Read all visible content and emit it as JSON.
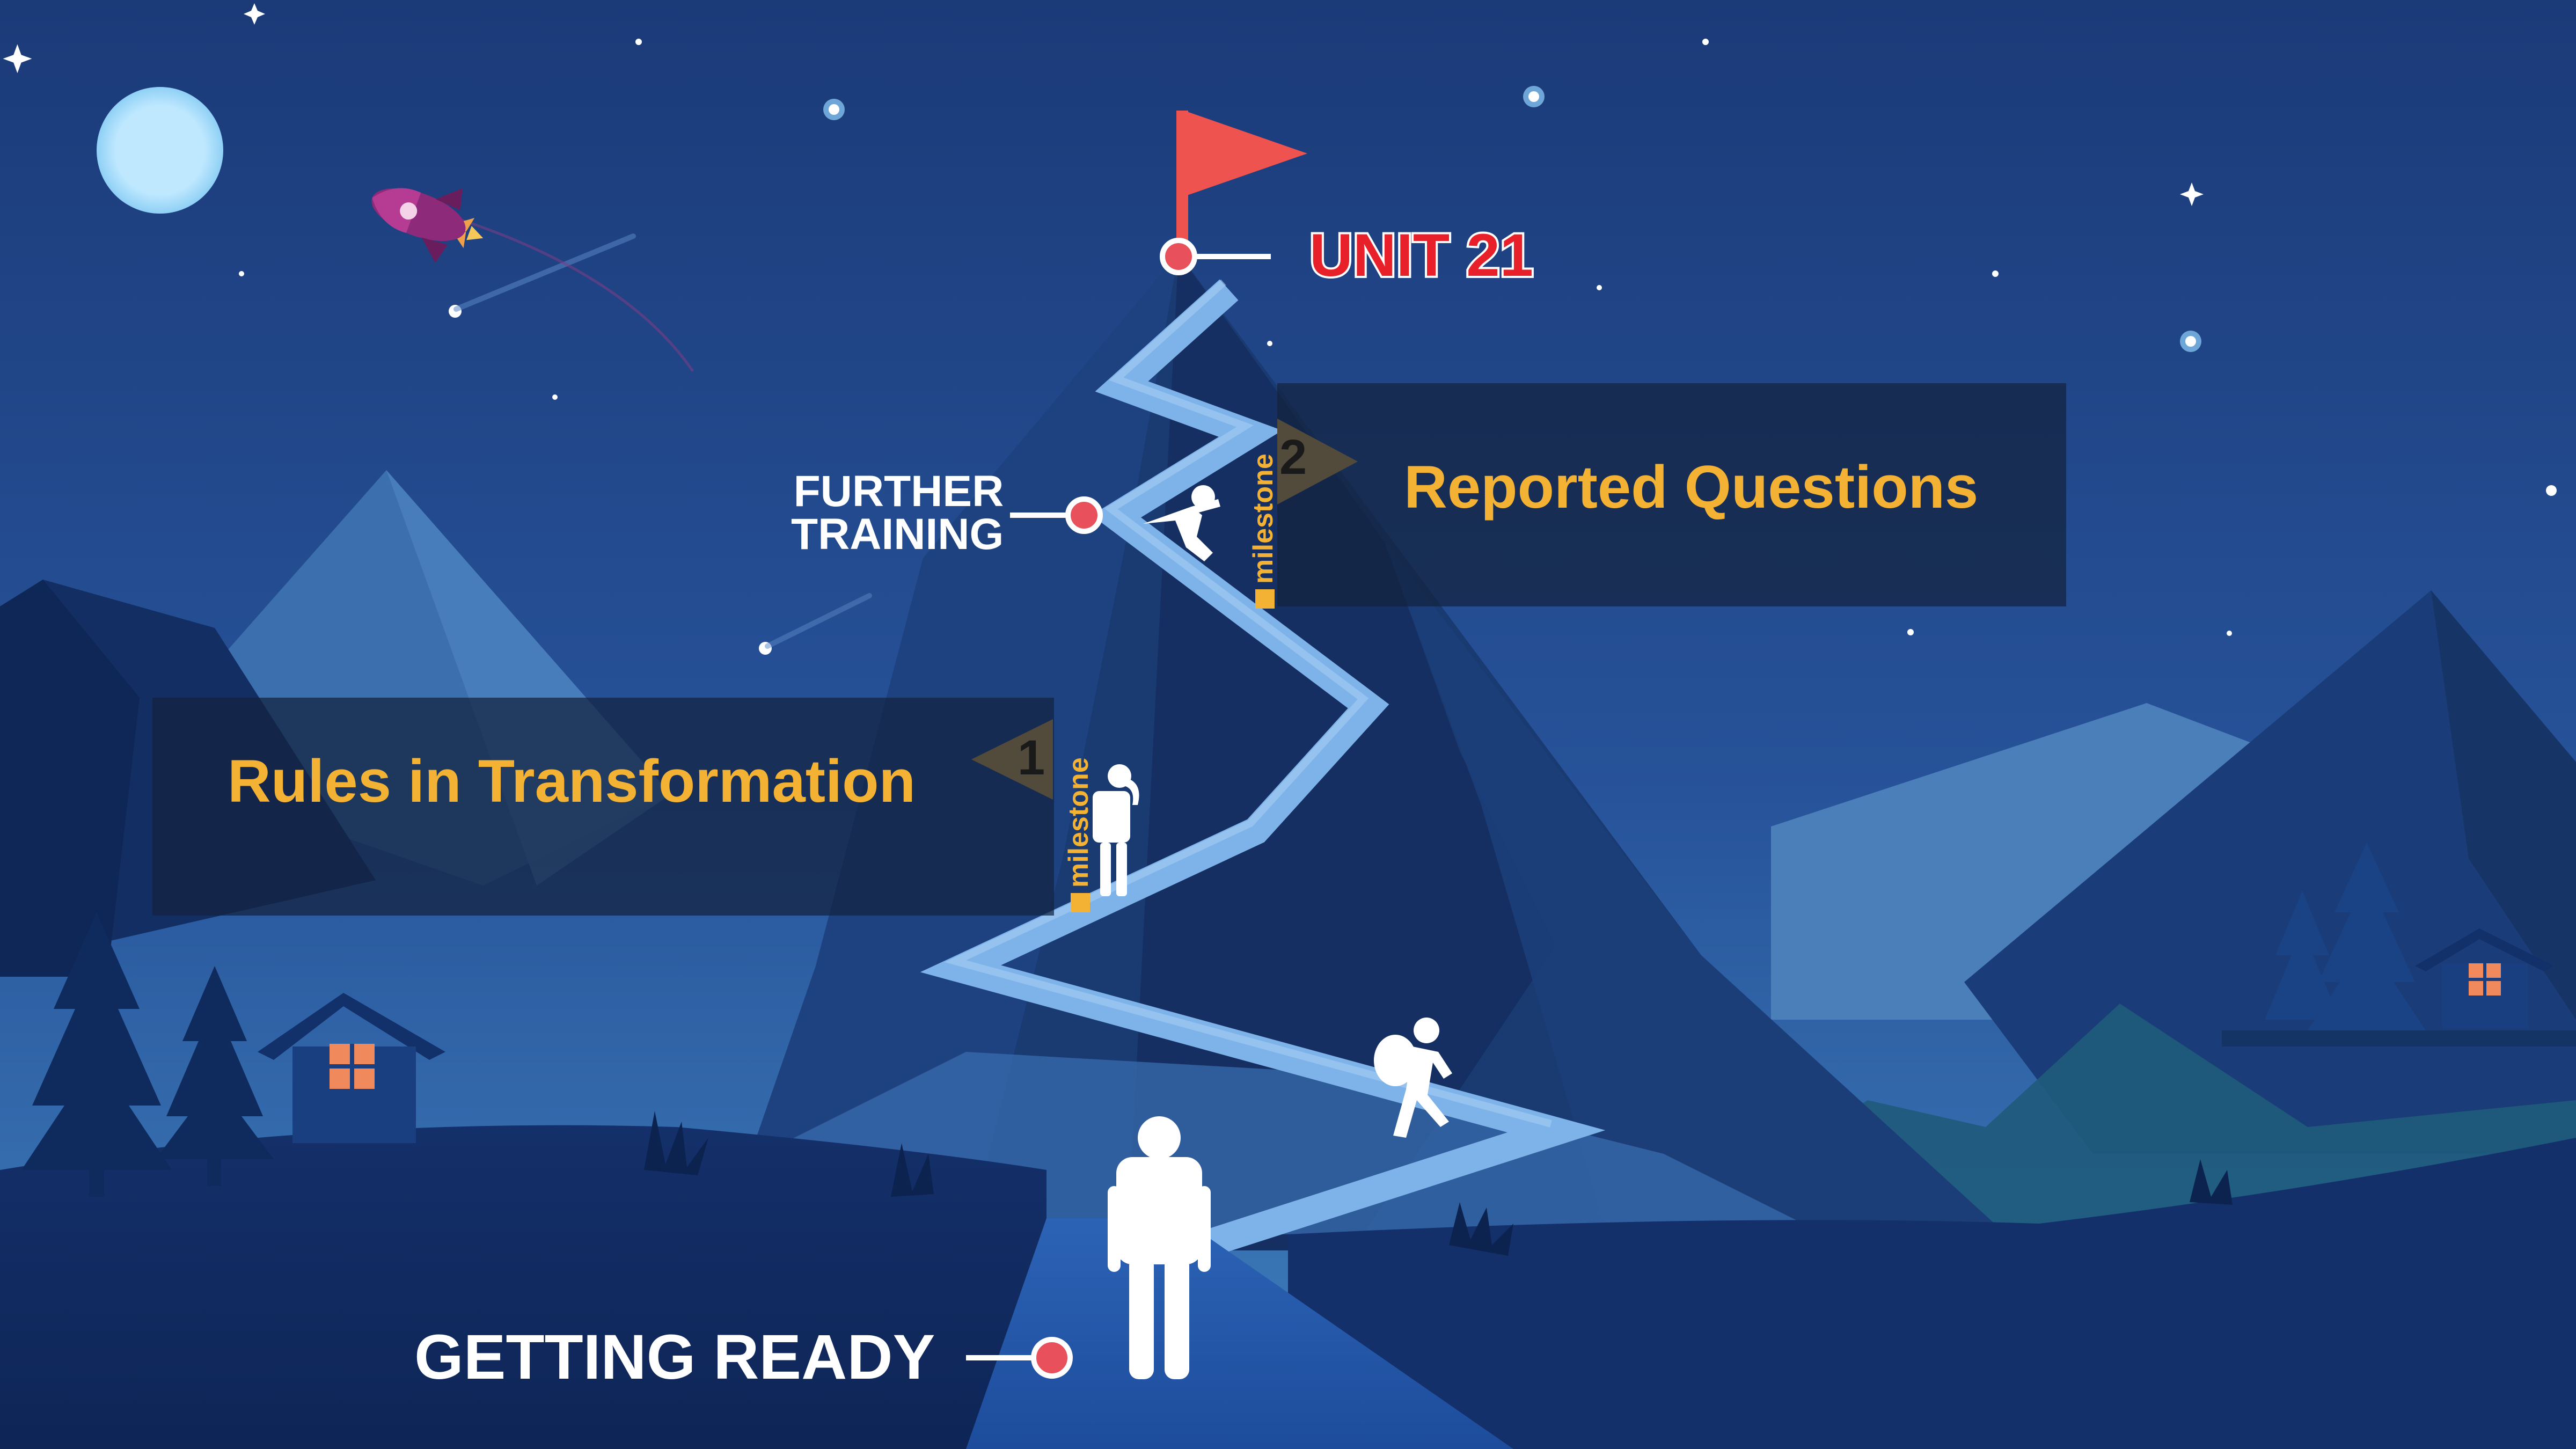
{
  "summit": {
    "label": "UNIT 21"
  },
  "stages": {
    "start": {
      "label": "GETTING READY"
    },
    "middle": {
      "line1": "FURTHER",
      "line2": "TRAINING"
    }
  },
  "milestones": [
    {
      "number": "1",
      "tag": "milestone",
      "title": "Rules in Transformation"
    },
    {
      "number": "2",
      "tag": "milestone",
      "title": "Reported Questions"
    }
  ],
  "colors": {
    "sky_top": "#1d3d7a",
    "sky_bottom": "#3a78b6",
    "accent_yellow": "#f3b233",
    "marker_red": "#e8505b",
    "flag_red": "#ef5350",
    "path_blue": "#7eb3ea",
    "window_orange": "#f08a5d"
  },
  "icons": [
    "moon-icon",
    "rocket-icon",
    "summit-flag-icon",
    "milestone-flag-icon",
    "hiker-icon",
    "tree-icon",
    "cabin-icon"
  ]
}
